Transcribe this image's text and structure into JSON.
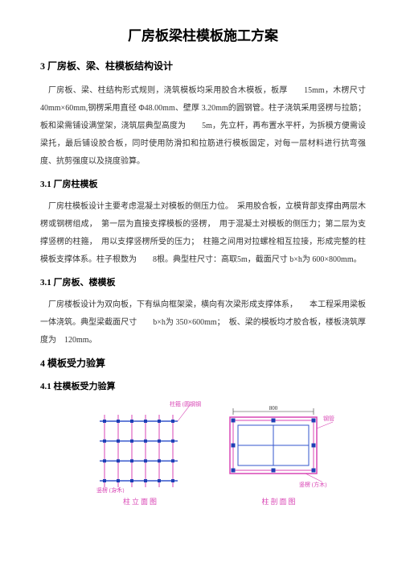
{
  "title": "厂房板梁柱模板施工方案",
  "sections": {
    "s3": {
      "heading": "3 厂房板、梁、柱模板结构设计",
      "para": "厂房板、梁、柱结构形式规则，浇筑模板均采用胶合木模板，板厚　　15mm，木楞尺寸 40mm×60mm,钢楞采用直径 Φ48.00mm、壁厚 3.20mm的圆钢管。柱子浇筑采用竖楞与拉筋；板和梁需铺设满堂架，浇筑层典型高度为　　5m，先立杆，再布置水平杆，为拆模方便需设梁托，最后铺设胶合板，同时使用防滑扣和拉筋进行模板固定，对每一层材料进行抗弯强度、抗剪强度以及挠度验算。"
    },
    "s31a": {
      "heading": "3.1 厂房柱模板",
      "para": "厂房柱模板设计主要考虑混凝土对模板的侧压力位。　采用胶合板，立模背部支撑由两层木楞或钢楞组成，　第一层为直接支撑模板的竖楞，　用于混凝土对模板的侧压力；第二层为支撑竖楞的柱箍，　用以支撑竖楞所受的压力；　柱箍之间用对拉螺栓相互拉接，形成完整的柱模板支撑体系。柱子根数为　　8根。典型柱尺寸：高取5m，截面尺寸 b×h为 600×800mm。"
    },
    "s31b": {
      "heading": "3.1 厂房板、楼模板",
      "para": "厂房楼板设计为双向板，下有纵向框架梁，横向有次梁形成支撑体系，　　本工程采用梁板一体浇筑。典型梁截面尺寸　　b×h为 350×600mm；　板、梁的模板均才胶合板，楼板浇筑厚度为　120mm。"
    },
    "s4": {
      "heading": "4 模板受力验算"
    },
    "s41": {
      "heading": "4.1 柱模板受力验算"
    }
  },
  "figures": {
    "elevation": {
      "caption": "柱立面图",
      "label_top": "柱箍 (圆钢钢管)",
      "label_bottom": "竖楞 (方木)",
      "colors": {
        "outline": "#d946b5",
        "bolt": "#1e3fb5",
        "grid": "#3355cc"
      }
    },
    "section": {
      "caption": "柱剖面图",
      "label_right": "钢管",
      "label_bottom": "竖楞 (方木)",
      "dim": "800",
      "colors": {
        "outline": "#d946b5",
        "bolt": "#1e3fb5",
        "fill": "#3355cc"
      }
    }
  }
}
